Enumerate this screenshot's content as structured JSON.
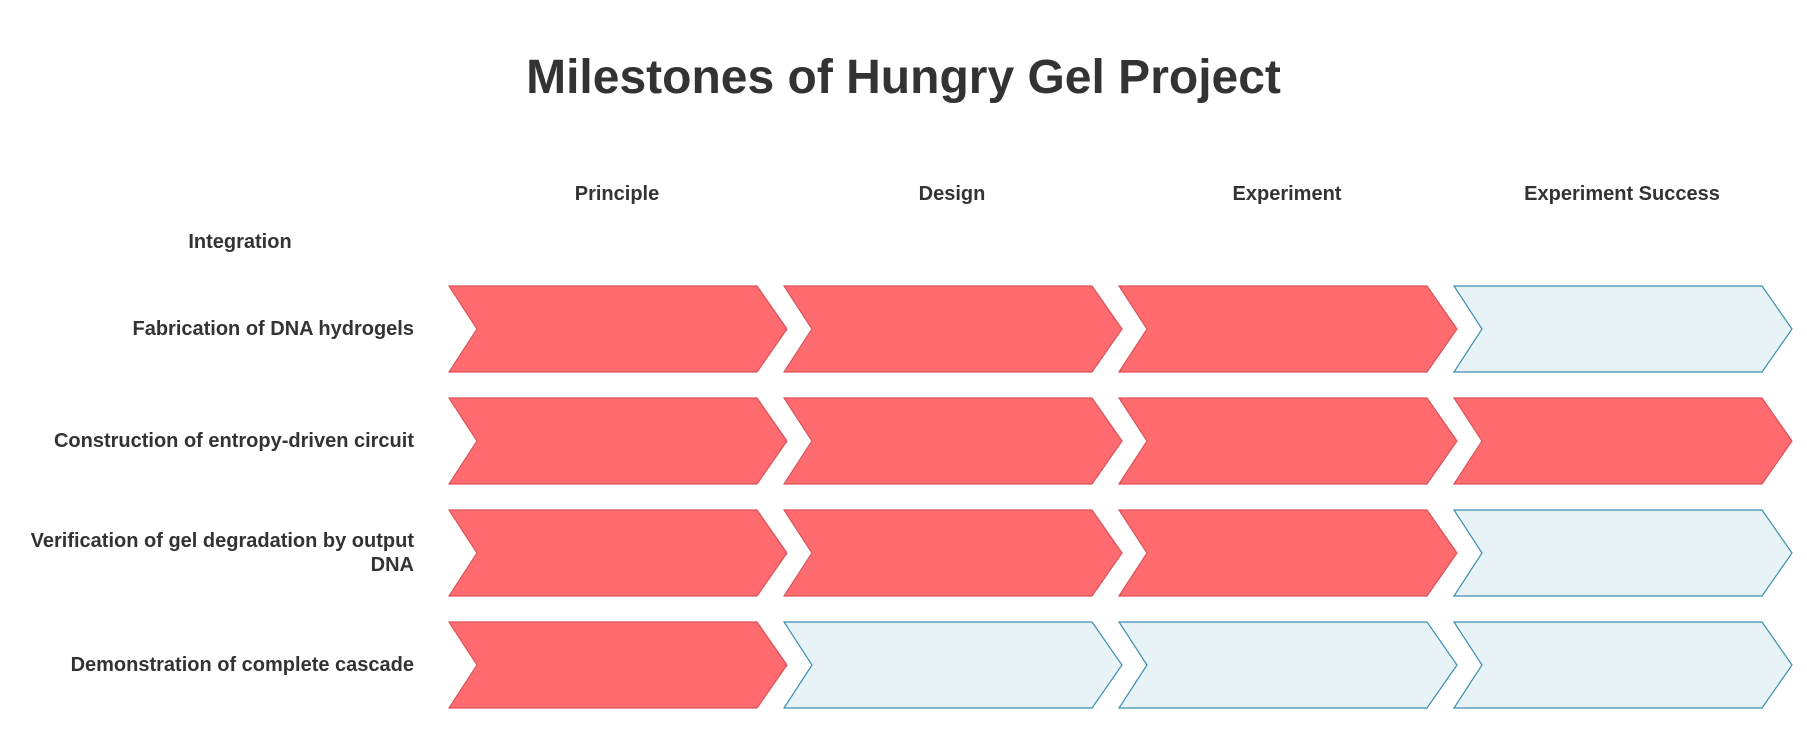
{
  "title": "Milestones of Hungry Gel Project",
  "corner_label": "Integration",
  "columns": [
    "Principle",
    "Design",
    "Experiment",
    "Experiment Success"
  ],
  "rows": [
    {
      "label": "Fabrication of DNA hydrogels",
      "status": [
        true,
        true,
        true,
        false
      ]
    },
    {
      "label": "Construction of entropy-driven circuit",
      "status": [
        true,
        true,
        true,
        true
      ]
    },
    {
      "label": "Verification of gel degradation by output DNA",
      "status": [
        true,
        true,
        true,
        false
      ]
    },
    {
      "label": "Demonstration of complete cascade",
      "status": [
        true,
        false,
        false,
        false
      ]
    }
  ],
  "colors": {
    "done_fill": "#ff6b6e",
    "done_stroke": "#d9535a",
    "pending_fill": "#e8f3f7",
    "pending_stroke": "#3a8fb0"
  }
}
